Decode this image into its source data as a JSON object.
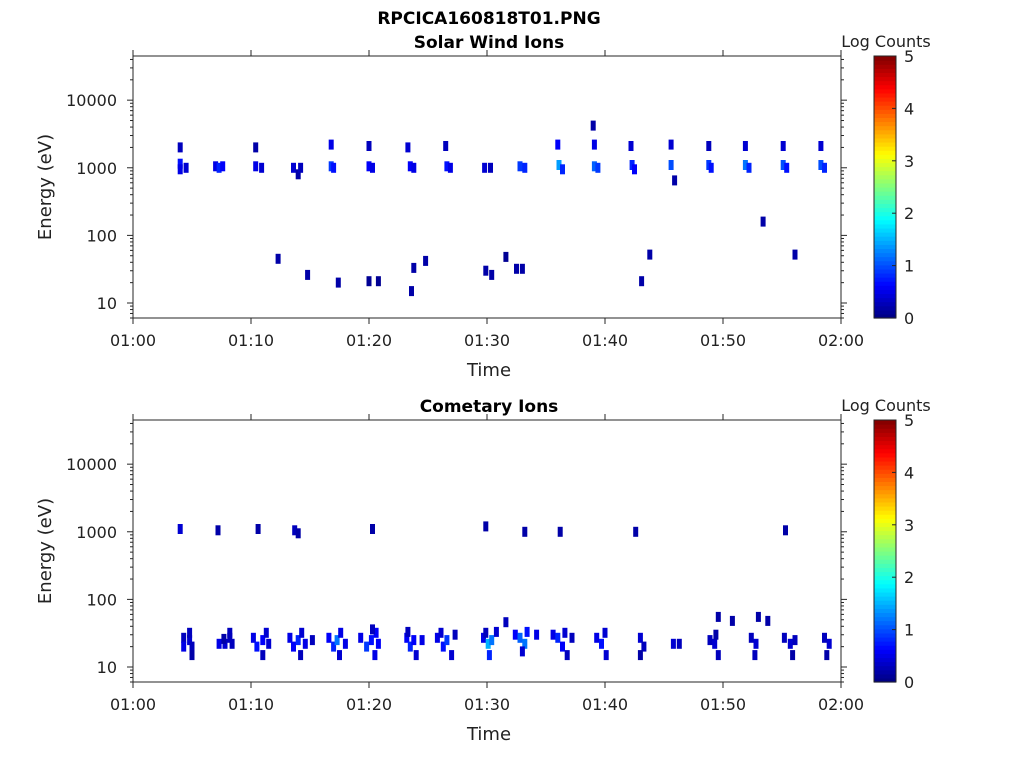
{
  "figure": {
    "title": "RPCICA160818T01.PNG"
  },
  "chart_data": [
    {
      "type": "heatmap",
      "title": "Solar Wind Ions",
      "xlabel": "Time",
      "ylabel": "Energy (eV)",
      "x_ticks": [
        "01:00",
        "01:10",
        "01:20",
        "01:30",
        "01:40",
        "01:50",
        "02:00"
      ],
      "y_ticks": [
        "10",
        "100",
        "1000",
        "10000"
      ],
      "xlim_minutes": [
        0,
        60
      ],
      "ylim_eV": [
        6,
        45000
      ],
      "y_scale": "log",
      "colorbar": {
        "label": "Log Counts",
        "ticks": [
          "0",
          "1",
          "2",
          "3",
          "4",
          "5"
        ],
        "range": [
          0,
          5
        ],
        "colormap": "jet"
      },
      "cells": [
        [
          4.0,
          2000,
          0.3
        ],
        [
          4.0,
          1150,
          0.7
        ],
        [
          4.0,
          950,
          0.5
        ],
        [
          4.5,
          1000,
          0.4
        ],
        [
          7.0,
          1050,
          0.5
        ],
        [
          7.3,
          1000,
          0.8
        ],
        [
          7.6,
          1050,
          0.6
        ],
        [
          10.4,
          2000,
          0.2
        ],
        [
          10.4,
          1050,
          0.5
        ],
        [
          10.9,
          1000,
          0.4
        ],
        [
          12.3,
          45,
          0.2
        ],
        [
          13.6,
          1000,
          0.4
        ],
        [
          14.0,
          800,
          0.2
        ],
        [
          14.2,
          1000,
          0.3
        ],
        [
          14.8,
          26,
          0.2
        ],
        [
          16.8,
          2200,
          0.5
        ],
        [
          16.8,
          1050,
          0.9
        ],
        [
          17.0,
          1000,
          0.7
        ],
        [
          17.4,
          20,
          0.2
        ],
        [
          20.0,
          2100,
          0.3
        ],
        [
          20.0,
          1050,
          0.6
        ],
        [
          20.3,
          1000,
          0.5
        ],
        [
          20.0,
          21,
          0.1
        ],
        [
          20.8,
          21,
          0.1
        ],
        [
          23.3,
          2000,
          0.4
        ],
        [
          23.5,
          1050,
          0.6
        ],
        [
          23.8,
          1000,
          0.5
        ],
        [
          23.6,
          15,
          0.2
        ],
        [
          23.8,
          33,
          0.2
        ],
        [
          24.8,
          42,
          0.2
        ],
        [
          26.5,
          2100,
          0.3
        ],
        [
          26.6,
          1050,
          0.7
        ],
        [
          26.9,
          1000,
          0.5
        ],
        [
          29.8,
          1000,
          0.4
        ],
        [
          30.3,
          1000,
          0.3
        ],
        [
          29.9,
          30,
          0.2
        ],
        [
          30.4,
          26,
          0.2
        ],
        [
          31.6,
          48,
          0.1
        ],
        [
          32.5,
          32,
          0.2
        ],
        [
          33.0,
          32,
          0.2
        ],
        [
          32.8,
          1050,
          0.9
        ],
        [
          33.2,
          1000,
          0.8
        ],
        [
          36.0,
          2200,
          0.6
        ],
        [
          36.1,
          1100,
          1.4
        ],
        [
          36.4,
          950,
          0.8
        ],
        [
          39.0,
          4200,
          0.2
        ],
        [
          39.1,
          2200,
          0.5
        ],
        [
          39.1,
          1050,
          1.1
        ],
        [
          39.4,
          1000,
          0.9
        ],
        [
          42.2,
          2100,
          0.4
        ],
        [
          42.3,
          1100,
          0.8
        ],
        [
          42.5,
          950,
          0.6
        ],
        [
          43.1,
          21,
          0.2
        ],
        [
          43.8,
          52,
          0.2
        ],
        [
          45.6,
          2200,
          0.4
        ],
        [
          45.6,
          1100,
          1.0
        ],
        [
          45.9,
          650,
          0.2
        ],
        [
          48.8,
          2100,
          0.3
        ],
        [
          48.8,
          1100,
          0.9
        ],
        [
          49.0,
          1000,
          0.7
        ],
        [
          51.9,
          2100,
          0.4
        ],
        [
          51.9,
          1100,
          1.2
        ],
        [
          52.2,
          1000,
          0.8
        ],
        [
          53.4,
          160,
          0.2
        ],
        [
          55.1,
          2100,
          0.4
        ],
        [
          55.1,
          1100,
          1.0
        ],
        [
          55.4,
          1000,
          0.7
        ],
        [
          56.1,
          52,
          0.2
        ],
        [
          58.3,
          2100,
          0.4
        ],
        [
          58.3,
          1100,
          1.0
        ],
        [
          58.6,
          1000,
          0.8
        ]
      ]
    },
    {
      "type": "heatmap",
      "title": "Cometary Ions",
      "xlabel": "Time",
      "ylabel": "Energy (eV)",
      "x_ticks": [
        "01:00",
        "01:10",
        "01:20",
        "01:30",
        "01:40",
        "01:50",
        "02:00"
      ],
      "y_ticks": [
        "10",
        "100",
        "1000",
        "10000"
      ],
      "xlim_minutes": [
        0,
        60
      ],
      "ylim_eV": [
        6,
        45000
      ],
      "y_scale": "log",
      "colorbar": {
        "label": "Log Counts",
        "ticks": [
          "0",
          "1",
          "2",
          "3",
          "4",
          "5"
        ],
        "range": [
          0,
          5
        ],
        "colormap": "jet"
      },
      "cells": [
        [
          4.0,
          1100,
          0.4
        ],
        [
          7.2,
          1050,
          0.2
        ],
        [
          10.6,
          1100,
          0.2
        ],
        [
          13.7,
          1050,
          0.3
        ],
        [
          14.0,
          950,
          0.2
        ],
        [
          20.3,
          1100,
          0.2
        ],
        [
          29.9,
          1200,
          0.2
        ],
        [
          33.2,
          1000,
          0.2
        ],
        [
          36.2,
          1000,
          0.2
        ],
        [
          42.6,
          1000,
          0.2
        ],
        [
          55.3,
          1050,
          0.2
        ],
        [
          49.6,
          55,
          0.2
        ],
        [
          50.8,
          48,
          0.2
        ],
        [
          53.0,
          55,
          0.2
        ],
        [
          53.8,
          48,
          0.2
        ],
        [
          31.6,
          46,
          0.3
        ],
        [
          4.3,
          27,
          0.3
        ],
        [
          4.8,
          25,
          0.4
        ],
        [
          4.3,
          20,
          0.5
        ],
        [
          5.0,
          20,
          0.3
        ],
        [
          5.0,
          15,
          0.2
        ],
        [
          4.8,
          32,
          0.3
        ],
        [
          7.3,
          22,
          0.5
        ],
        [
          7.8,
          22,
          0.4
        ],
        [
          8.2,
          27,
          0.3
        ],
        [
          8.2,
          32,
          0.3
        ],
        [
          7.7,
          26,
          0.2
        ],
        [
          8.4,
          22,
          0.3
        ],
        [
          10.2,
          27,
          0.5
        ],
        [
          10.5,
          20,
          0.7
        ],
        [
          11.0,
          25,
          0.6
        ],
        [
          11.3,
          32,
          0.4
        ],
        [
          11.0,
          15,
          0.3
        ],
        [
          11.5,
          22,
          0.4
        ],
        [
          13.3,
          27,
          0.5
        ],
        [
          13.6,
          20,
          0.6
        ],
        [
          14.0,
          25,
          0.8
        ],
        [
          14.3,
          32,
          0.4
        ],
        [
          14.2,
          15,
          0.3
        ],
        [
          14.6,
          22,
          0.5
        ],
        [
          15.2,
          25,
          0.3
        ],
        [
          16.6,
          27,
          0.6
        ],
        [
          17.0,
          20,
          0.8
        ],
        [
          17.3,
          25,
          1.2
        ],
        [
          17.6,
          32,
          0.5
        ],
        [
          17.5,
          15,
          0.4
        ],
        [
          18.0,
          22,
          0.5
        ],
        [
          19.3,
          27,
          0.5
        ],
        [
          19.8,
          20,
          0.9
        ],
        [
          20.2,
          25,
          0.7
        ],
        [
          20.6,
          32,
          0.6
        ],
        [
          20.5,
          15,
          0.5
        ],
        [
          20.8,
          22,
          0.6
        ],
        [
          20.3,
          36,
          0.3
        ],
        [
          23.2,
          27,
          0.6
        ],
        [
          23.5,
          20,
          0.8
        ],
        [
          23.8,
          25,
          0.6
        ],
        [
          24.0,
          15,
          0.4
        ],
        [
          24.5,
          25,
          0.5
        ],
        [
          23.3,
          33,
          0.3
        ],
        [
          25.8,
          27,
          0.5
        ],
        [
          26.3,
          20,
          0.7
        ],
        [
          26.6,
          25,
          0.9
        ],
        [
          27.0,
          15,
          0.4
        ],
        [
          27.3,
          30,
          0.3
        ],
        [
          26.1,
          32,
          0.4
        ],
        [
          29.7,
          27,
          0.5
        ],
        [
          30.1,
          22,
          1.5
        ],
        [
          30.4,
          25,
          1.2
        ],
        [
          30.2,
          15,
          0.8
        ],
        [
          30.8,
          33,
          0.4
        ],
        [
          29.9,
          32,
          0.3
        ],
        [
          32.4,
          30,
          0.6
        ],
        [
          32.8,
          27,
          1.1
        ],
        [
          33.2,
          22,
          1.2
        ],
        [
          33.4,
          33,
          0.7
        ],
        [
          33.0,
          17,
          0.4
        ],
        [
          34.2,
          30,
          0.5
        ],
        [
          35.6,
          30,
          0.5
        ],
        [
          36.0,
          27,
          0.8
        ],
        [
          36.4,
          20,
          0.6
        ],
        [
          36.6,
          32,
          0.4
        ],
        [
          36.8,
          15,
          0.3
        ],
        [
          37.2,
          27,
          0.3
        ],
        [
          39.3,
          27,
          0.5
        ],
        [
          39.7,
          22,
          0.7
        ],
        [
          40.0,
          32,
          0.4
        ],
        [
          40.1,
          15,
          0.4
        ],
        [
          43.0,
          27,
          0.4
        ],
        [
          43.3,
          20,
          0.3
        ],
        [
          43.0,
          15,
          0.2
        ],
        [
          45.8,
          22,
          0.4
        ],
        [
          46.3,
          22,
          0.3
        ],
        [
          48.9,
          25,
          0.3
        ],
        [
          49.3,
          22,
          0.4
        ],
        [
          49.6,
          15,
          0.3
        ],
        [
          49.4,
          30,
          0.2
        ],
        [
          52.4,
          27,
          0.3
        ],
        [
          52.8,
          22,
          0.4
        ],
        [
          52.7,
          15,
          0.3
        ],
        [
          55.2,
          27,
          0.3
        ],
        [
          55.7,
          22,
          0.4
        ],
        [
          56.1,
          25,
          0.3
        ],
        [
          55.9,
          15,
          0.2
        ],
        [
          58.6,
          27,
          0.3
        ],
        [
          59.0,
          22,
          0.4
        ],
        [
          58.8,
          15,
          0.2
        ]
      ]
    }
  ]
}
